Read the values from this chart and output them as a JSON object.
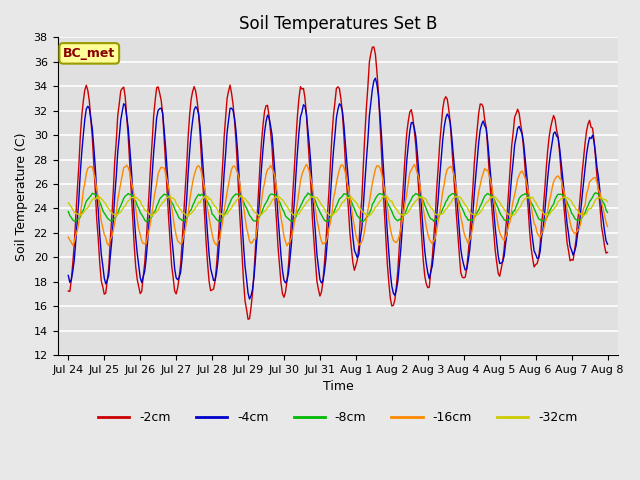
{
  "title": "Soil Temperatures Set B",
  "xlabel": "Time",
  "ylabel": "Soil Temperature (C)",
  "ylim": [
    12,
    38
  ],
  "yticks": [
    12,
    14,
    16,
    18,
    20,
    22,
    24,
    26,
    28,
    30,
    32,
    34,
    36,
    38
  ],
  "annotation": "BC_met",
  "colors": {
    "-2cm": "#cc0000",
    "-4cm": "#0000cc",
    "-8cm": "#00bb00",
    "-16cm": "#ff8800",
    "-32cm": "#cccc00"
  },
  "bg_color": "#e0e0e0",
  "grid_color": "#ffffff",
  "fig_bg_color": "#e8e8e8",
  "xtick_labels": [
    "Jul 24",
    "Jul 25",
    "Jul 26",
    "Jul 27",
    "Jul 28",
    "Jul 29",
    "Jul 30",
    "Jul 31",
    "Aug 1",
    "Aug 2",
    "Aug 3",
    "Aug 4",
    "Aug 5",
    "Aug 6",
    "Aug 7",
    "Aug 8"
  ],
  "linewidth": 1.0,
  "title_fontsize": 12,
  "label_fontsize": 9,
  "tick_fontsize": 8
}
